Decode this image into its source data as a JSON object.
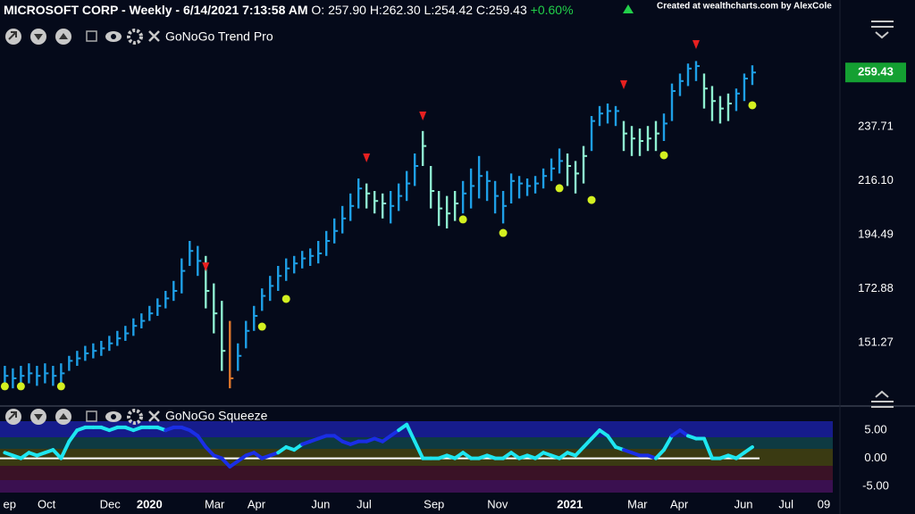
{
  "watermark": "Created at wealthcharts.com by AlexCole",
  "chart_data": [
    {
      "type": "ohlc",
      "title": "MICROSOFT CORP - Weekly - 6/14/2021 7:13:58 AM",
      "open_label": "O: 257.90",
      "high_label": "H:262.30",
      "low_label": "L:254.42",
      "close_label": "C:259.43",
      "change_label": "+0.60%",
      "change_color": "#22d04a",
      "indicator": "GoNoGo Trend Pro",
      "x": [
        0,
        1,
        2,
        3,
        4,
        5,
        6,
        7,
        8,
        9,
        10,
        11,
        12,
        13,
        14,
        15,
        16,
        17,
        18,
        19,
        20,
        21,
        22,
        23,
        24,
        25,
        26,
        27,
        28,
        29,
        30,
        31,
        32,
        33,
        34,
        35,
        36,
        37,
        38,
        39,
        40,
        41,
        42,
        43,
        44,
        45,
        46,
        47,
        48,
        49,
        50,
        51,
        52,
        53,
        54,
        55,
        56,
        57,
        58,
        59,
        60,
        61,
        62,
        63,
        64,
        65,
        66,
        67,
        68,
        69,
        70,
        71,
        72,
        73,
        74,
        75,
        76,
        77,
        78,
        79,
        80,
        81,
        82,
        83,
        84,
        85,
        86,
        87,
        88,
        89,
        90,
        91,
        92,
        93
      ],
      "close": [
        138,
        137,
        138,
        139,
        138,
        139,
        138,
        139,
        144,
        145,
        147,
        148,
        149,
        151,
        153,
        155,
        158,
        160,
        163,
        166,
        169,
        172,
        180,
        188,
        184,
        172,
        163,
        148,
        137,
        146,
        156,
        162,
        170,
        174,
        178,
        181,
        183,
        185,
        186,
        187,
        192,
        196,
        201,
        206,
        213,
        211,
        208,
        207,
        206,
        210,
        215,
        222,
        230,
        212,
        205,
        203,
        207,
        211,
        214,
        218,
        216,
        210,
        206,
        216,
        215,
        214,
        215,
        218,
        221,
        224,
        222,
        219,
        226,
        240,
        243,
        244,
        244,
        235,
        233,
        232,
        233,
        235,
        239,
        252,
        256,
        261,
        262,
        253,
        248,
        245,
        247,
        251,
        257,
        259.43
      ],
      "high": [
        142,
        141,
        142,
        143,
        142,
        143,
        142,
        143,
        146,
        148,
        150,
        151,
        152,
        154,
        156,
        158,
        161,
        163,
        166,
        169,
        172,
        176,
        185,
        192,
        190,
        186,
        175,
        168,
        160,
        151,
        160,
        166,
        173,
        178,
        182,
        185,
        186,
        188,
        189,
        192,
        196,
        201,
        206,
        211,
        217,
        215,
        212,
        211,
        212,
        215,
        220,
        227,
        236,
        222,
        212,
        210,
        212,
        216,
        221,
        226,
        220,
        216,
        212,
        219,
        218,
        217,
        218,
        221,
        225,
        229,
        227,
        224,
        230,
        242,
        246,
        247,
        246,
        240,
        238,
        237,
        238,
        240,
        243,
        255,
        259,
        263,
        264,
        259,
        254,
        250,
        251,
        253,
        259,
        262.3
      ],
      "low": [
        134,
        133,
        134,
        135,
        134,
        135,
        134,
        135,
        140,
        142,
        144,
        145,
        146,
        148,
        150,
        152,
        154,
        157,
        160,
        162,
        165,
        168,
        171,
        182,
        178,
        165,
        155,
        140,
        133,
        140,
        149,
        156,
        164,
        168,
        172,
        176,
        179,
        181,
        182,
        183,
        186,
        191,
        195,
        200,
        205,
        205,
        203,
        201,
        199,
        204,
        208,
        214,
        222,
        205,
        198,
        197,
        200,
        203,
        205,
        209,
        208,
        203,
        199,
        207,
        209,
        210,
        211,
        213,
        216,
        219,
        214,
        211,
        215,
        228,
        238,
        239,
        238,
        228,
        226,
        226,
        228,
        228,
        232,
        240,
        250,
        254,
        256,
        245,
        240,
        239,
        240,
        244,
        248,
        254.42
      ],
      "colors": [
        "#1e9fe6",
        "#1e9fe6",
        "#1e9fe6",
        "#1e9fe6",
        "#1e9fe6",
        "#1e9fe6",
        "#1e9fe6",
        "#1e9fe6",
        "#1e9fe6",
        "#1e9fe6",
        "#1e9fe6",
        "#1e9fe6",
        "#1e9fe6",
        "#1e9fe6",
        "#1e9fe6",
        "#1e9fe6",
        "#1e9fe6",
        "#1e9fe6",
        "#1e9fe6",
        "#1e9fe6",
        "#1e9fe6",
        "#1e9fe6",
        "#1e9fe6",
        "#1e9fe6",
        "#1e9fe6",
        "#8ef0d0",
        "#8ef0d0",
        "#8ef0d0",
        "#e0782c",
        "#1e9fe6",
        "#1e9fe6",
        "#1e9fe6",
        "#1e9fe6",
        "#1e9fe6",
        "#1e9fe6",
        "#1e9fe6",
        "#1e9fe6",
        "#1e9fe6",
        "#1e9fe6",
        "#1e9fe6",
        "#1e9fe6",
        "#1e9fe6",
        "#1e9fe6",
        "#1e9fe6",
        "#1e9fe6",
        "#8ef0d0",
        "#8ef0d0",
        "#8ef0d0",
        "#1e9fe6",
        "#1e9fe6",
        "#1e9fe6",
        "#1e9fe6",
        "#8ef0d0",
        "#8ef0d0",
        "#8ef0d0",
        "#8ef0d0",
        "#8ef0d0",
        "#1e9fe6",
        "#1e9fe6",
        "#1e9fe6",
        "#1e9fe6",
        "#1e9fe6",
        "#1e9fe6",
        "#1e9fe6",
        "#1e9fe6",
        "#1e9fe6",
        "#1e9fe6",
        "#1e9fe6",
        "#1e9fe6",
        "#1e9fe6",
        "#8ef0d0",
        "#8ef0d0",
        "#8ef0d0",
        "#1e9fe6",
        "#1e9fe6",
        "#1e9fe6",
        "#1e9fe6",
        "#8ef0d0",
        "#8ef0d0",
        "#8ef0d0",
        "#8ef0d0",
        "#8ef0d0",
        "#1e9fe6",
        "#1e9fe6",
        "#1e9fe6",
        "#1e9fe6",
        "#1e9fe6",
        "#8ef0d0",
        "#8ef0d0",
        "#8ef0d0",
        "#8ef0d0",
        "#1e9fe6",
        "#1e9fe6",
        "#1e9fe6"
      ],
      "dots": {
        "color": "#d4f020",
        "x": [
          0,
          2,
          7,
          32,
          35,
          57,
          62,
          69,
          73,
          82,
          93
        ],
        "values": [
          133.8,
          133.8,
          133.8,
          157.7,
          168.8,
          200.6,
          195.2,
          213.1,
          208.4,
          226.3,
          246.3
        ]
      },
      "arrows": {
        "color": "#e82020",
        "x": [
          25,
          45,
          52,
          77,
          86
        ],
        "values": [
          181.6,
          225.2,
          242,
          254.5,
          270.6
        ]
      },
      "xlim": [
        -0.6,
        103.9
      ],
      "ylim": [
        127.7,
        281.3
      ],
      "yticks": [
        151.27,
        172.88,
        194.49,
        {
          "value": 216.1,
          "label": "216.10"
        },
        237.71
      ],
      "last_price": 259.43,
      "last_price_color": "#14a032"
    },
    {
      "type": "line",
      "indicator": "GoNoGo Squeeze",
      "x": [
        0,
        1,
        2,
        3,
        4,
        5,
        6,
        7,
        8,
        9,
        10,
        11,
        12,
        13,
        14,
        15,
        16,
        17,
        18,
        19,
        20,
        21,
        22,
        23,
        24,
        25,
        26,
        27,
        28,
        29,
        30,
        31,
        32,
        33,
        34,
        35,
        36,
        37,
        38,
        39,
        40,
        41,
        42,
        43,
        44,
        45,
        46,
        47,
        48,
        49,
        50,
        51,
        52,
        53,
        54,
        55,
        56,
        57,
        58,
        59,
        60,
        61,
        62,
        63,
        64,
        65,
        66,
        67,
        68,
        69,
        70,
        71,
        72,
        73,
        74,
        75,
        76,
        77,
        78,
        79,
        80,
        81,
        82,
        83,
        84,
        85,
        86,
        87,
        88,
        89,
        90,
        91,
        92,
        93
      ],
      "values": [
        1,
        0.5,
        0,
        1,
        0.5,
        1,
        1.5,
        0,
        3,
        5,
        5.5,
        5.5,
        5.5,
        5,
        5.5,
        5.5,
        5,
        5.5,
        5.5,
        5.5,
        5,
        5.5,
        5.5,
        5,
        4,
        2,
        0.5,
        0,
        -1.5,
        -0.5,
        0.5,
        1,
        0,
        0.5,
        1,
        2,
        1.5,
        2.5,
        3,
        3.5,
        4,
        4,
        3,
        2.5,
        3,
        3,
        3.5,
        3,
        4,
        5,
        6,
        3,
        0,
        0,
        0,
        0.5,
        0,
        1,
        0,
        0,
        0.5,
        0,
        0,
        1,
        0,
        0.5,
        0,
        1,
        0.5,
        0,
        1,
        0.5,
        2,
        3.5,
        5,
        4,
        2,
        1.5,
        1,
        0.5,
        0.5,
        0,
        1.5,
        4,
        5,
        4,
        3.5,
        3.5,
        0,
        0,
        0.5,
        0,
        1,
        2
      ],
      "colors": [
        "#1ee6f0",
        "#1ee6f0",
        "#1ee6f0",
        "#1ee6f0",
        "#1ee6f0",
        "#1ee6f0",
        "#1ee6f0",
        "#1ee6f0",
        "#1ee6f0",
        "#1ee6f0",
        "#1ee6f0",
        "#1ee6f0",
        "#1ee6f0",
        "#1ee6f0",
        "#1ee6f0",
        "#1ee6f0",
        "#1ee6f0",
        "#1ee6f0",
        "#1ee6f0",
        "#1ee6f0",
        "#1a2ee6",
        "#1a2ee6",
        "#1a2ee6",
        "#1a2ee6",
        "#1a2ee6",
        "#1a2ee6",
        "#1a2ee6",
        "#1a2ee6",
        "#1a2ee6",
        "#1a2ee6",
        "#1a2ee6",
        "#1a2ee6",
        "#1a2ee6",
        "#1a2ee6",
        "#1ee6f0",
        "#1ee6f0",
        "#1ee6f0",
        "#1a2ee6",
        "#1a2ee6",
        "#1a2ee6",
        "#1a2ee6",
        "#1a2ee6",
        "#1a2ee6",
        "#1a2ee6",
        "#1a2ee6",
        "#1a2ee6",
        "#1a2ee6",
        "#1a2ee6",
        "#1a2ee6",
        "#1ee6f0",
        "#1ee6f0",
        "#1ee6f0",
        "#1ee6f0",
        "#1ee6f0",
        "#1ee6f0",
        "#1ee6f0",
        "#1ee6f0",
        "#1ee6f0",
        "#1ee6f0",
        "#1ee6f0",
        "#1ee6f0",
        "#1ee6f0",
        "#1ee6f0",
        "#1ee6f0",
        "#1ee6f0",
        "#1ee6f0",
        "#1ee6f0",
        "#1ee6f0",
        "#1ee6f0",
        "#1ee6f0",
        "#1ee6f0",
        "#1ee6f0",
        "#1ee6f0",
        "#1ee6f0",
        "#1ee6f0",
        "#1ee6f0",
        "#1ee6f0",
        "#1a2ee6",
        "#1a2ee6",
        "#1a2ee6",
        "#1a2ee6",
        "#1ee6f0",
        "#1ee6f0",
        "#1a2ee6",
        "#1a2ee6",
        "#1ee6f0",
        "#1ee6f0",
        "#1ee6f0",
        "#1ee6f0",
        "#1ee6f0",
        "#1ee6f0",
        "#1ee6f0",
        "#1ee6f0",
        "#1ee6f0"
      ],
      "xlim": [
        -0.6,
        103.9
      ],
      "ylim": [
        -6.1,
        6.6
      ],
      "yticks": [
        {
          "value": 5,
          "label": "5.00"
        },
        {
          "value": 0,
          "label": "0.00"
        },
        {
          "value": -5,
          "label": "-5.00"
        }
      ],
      "xticks": [
        {
          "value": 0.6,
          "label": "ep"
        },
        {
          "value": 5.2,
          "label": "Oct"
        },
        {
          "value": 13.1,
          "label": "Dec"
        },
        {
          "value": 18,
          "label": "2020"
        },
        {
          "value": 26.1,
          "label": "Mar"
        },
        {
          "value": 31.3,
          "label": "Apr"
        },
        {
          "value": 39.3,
          "label": "Jun"
        },
        {
          "value": 44.7,
          "label": "Jul"
        },
        {
          "value": 53.4,
          "label": "Sep"
        },
        {
          "value": 61.3,
          "label": "Nov"
        },
        {
          "value": 70.3,
          "label": "2021"
        },
        {
          "value": 78.7,
          "label": "Mar"
        },
        {
          "value": 83.9,
          "label": "Apr"
        },
        {
          "value": 91.9,
          "label": "Jun"
        },
        {
          "value": 97.2,
          "label": "Jul"
        },
        {
          "value": 101.9,
          "label": "09"
        }
      ]
    }
  ]
}
